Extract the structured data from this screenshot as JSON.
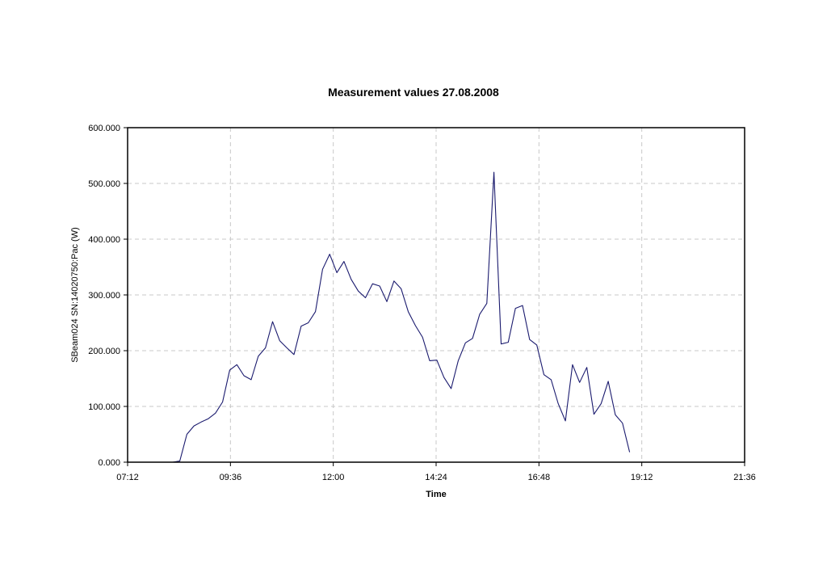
{
  "chart_data": {
    "type": "line",
    "title": "Measurement values 27.08.2008",
    "xlabel": "Time",
    "ylabel": "SBeam024 SN:14020750:Pac (W)",
    "xlim": [
      "07:12",
      "21:36"
    ],
    "ylim": [
      0,
      600
    ],
    "x_ticks": [
      "07:12",
      "09:36",
      "12:00",
      "14:24",
      "16:48",
      "19:12",
      "21:36"
    ],
    "y_ticks": [
      "0.000",
      "100.000",
      "200.000",
      "300.000",
      "400.000",
      "500.000",
      "600.000"
    ],
    "grid": true,
    "line_color": "#1a1a6e",
    "series": [
      {
        "x": [
          "08:15",
          "08:25",
          "08:35",
          "08:45",
          "08:55",
          "09:05",
          "09:15",
          "09:25",
          "09:35",
          "09:45",
          "09:55",
          "10:05",
          "10:15",
          "10:25",
          "10:35",
          "10:45",
          "10:55",
          "11:05",
          "11:15",
          "11:25",
          "11:35",
          "11:45",
          "11:55",
          "12:05",
          "12:15",
          "12:25",
          "12:35",
          "12:45",
          "12:55",
          "13:05",
          "13:15",
          "13:25",
          "13:35",
          "13:45",
          "13:55",
          "14:05",
          "14:15",
          "14:25",
          "14:35",
          "14:45",
          "14:55",
          "15:05",
          "15:15",
          "15:25",
          "15:35",
          "15:45",
          "15:55",
          "16:05",
          "16:15",
          "16:25",
          "16:35",
          "16:45",
          "16:55",
          "17:05",
          "17:15",
          "17:25",
          "17:35",
          "17:45",
          "17:55",
          "18:05",
          "18:15",
          "18:25",
          "18:35",
          "18:45",
          "18:55"
        ],
        "y": [
          0,
          2,
          50,
          65,
          72,
          78,
          88,
          108,
          165,
          175,
          155,
          148,
          190,
          205,
          252,
          218,
          205,
          193,
          244,
          250,
          270,
          346,
          373,
          340,
          360,
          328,
          307,
          295,
          320,
          316,
          288,
          325,
          311,
          270,
          245,
          224,
          182,
          183,
          152,
          132,
          182,
          214,
          222,
          265,
          285,
          520,
          212,
          215,
          276,
          281,
          220,
          210,
          157,
          148,
          105,
          74,
          175,
          143,
          170,
          86,
          105,
          145,
          85,
          70,
          18
        ]
      }
    ]
  }
}
